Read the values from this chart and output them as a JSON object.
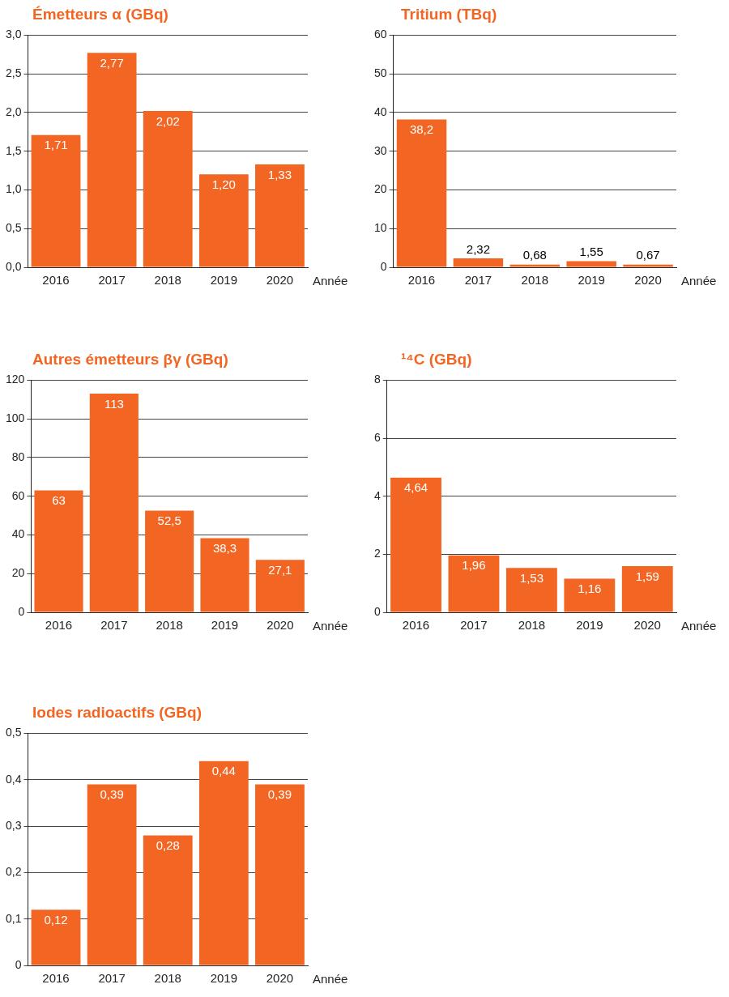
{
  "chart_data": [
    {
      "type": "bar",
      "title": "Émetteurs α (GBq)",
      "xlabel": "Année",
      "categories": [
        "2016",
        "2017",
        "2018",
        "2019",
        "2020"
      ],
      "color": "#f26522",
      "values": [
        1.71,
        2.77,
        2.02,
        1.2,
        1.33
      ],
      "value_labels": [
        "1,71",
        "2,77",
        "2,02",
        "1,20",
        "1,33"
      ],
      "ylim": [
        0,
        3
      ],
      "yticks": [
        {
          "value": 0,
          "label": "0,0"
        },
        {
          "value": 0.5,
          "label": "0,5"
        },
        {
          "value": 1,
          "label": "1,0"
        },
        {
          "value": 1.5,
          "label": "1,5"
        },
        {
          "value": 2,
          "label": "2,0"
        },
        {
          "value": 2.5,
          "label": "2,5"
        },
        {
          "value": 3,
          "label": "3,0"
        }
      ],
      "grid": "y",
      "legend": false
    },
    {
      "type": "bar",
      "title": "Tritium (TBq)",
      "xlabel": "Année",
      "categories": [
        "2016",
        "2017",
        "2018",
        "2019",
        "2020"
      ],
      "color": "#f26522",
      "values": [
        38.2,
        2.32,
        0.68,
        1.55,
        0.67
      ],
      "value_labels": [
        "38,2",
        "2,32",
        "0,68",
        "1,55",
        "0,67"
      ],
      "ylim": [
        0,
        60
      ],
      "yticks": [
        0,
        10,
        20,
        30,
        40,
        50,
        60
      ],
      "grid": "y",
      "legend": false
    },
    {
      "type": "bar",
      "title": "Autres émetteurs βγ (GBq)",
      "xlabel": "Année",
      "categories": [
        "2016",
        "2017",
        "2018",
        "2019",
        "2020"
      ],
      "color": "#f26522",
      "values": [
        63,
        113,
        52.5,
        38.3,
        27.1
      ],
      "value_labels": [
        "63",
        "113",
        "52,5",
        "38,3",
        "27,1"
      ],
      "ylim": [
        0,
        120
      ],
      "yticks": [
        0,
        20,
        40,
        60,
        80,
        100,
        120
      ],
      "grid": "y",
      "legend": false
    },
    {
      "type": "bar",
      "title": "¹⁴C (GBq)",
      "xlabel": "Année",
      "categories": [
        "2016",
        "2017",
        "2018",
        "2019",
        "2020"
      ],
      "color": "#f26522",
      "values": [
        4.64,
        1.96,
        1.53,
        1.16,
        1.59
      ],
      "value_labels": [
        "4,64",
        "1,96",
        "1,53",
        "1,16",
        "1,59"
      ],
      "ylim": [
        0,
        8
      ],
      "yticks": [
        0,
        2,
        4,
        6,
        8
      ],
      "grid": "y",
      "legend": false
    },
    {
      "type": "bar",
      "title": "Iodes radioactifs (GBq)",
      "xlabel": "Année",
      "categories": [
        "2016",
        "2017",
        "2018",
        "2019",
        "2020"
      ],
      "color": "#f26522",
      "values": [
        0.12,
        0.39,
        0.28,
        0.44,
        0.39
      ],
      "value_labels": [
        "0,12",
        "0,39",
        "0,28",
        "0,44",
        "0,39"
      ],
      "ylim": [
        0,
        0.5
      ],
      "yticks": [
        0,
        {
          "value": 0.1,
          "label": "0,1"
        },
        {
          "value": 0.2,
          "label": "0,2"
        },
        {
          "value": 0.3,
          "label": "0,3"
        },
        {
          "value": 0.4,
          "label": "0,4"
        },
        {
          "value": 0.5,
          "label": "0,5"
        }
      ],
      "grid": "y",
      "legend": false
    }
  ]
}
